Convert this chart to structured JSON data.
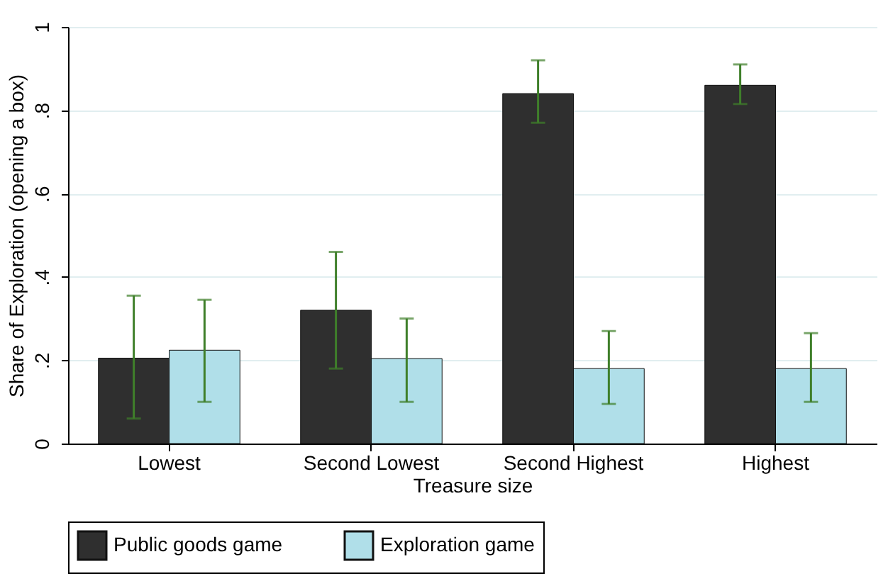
{
  "chart_data": {
    "type": "bar",
    "xlabel": "Treasure size",
    "ylabel": "Share of Exploration (opening a box)",
    "categories": [
      "Lowest",
      "Second Lowest",
      "Second Highest",
      "Highest"
    ],
    "series": [
      {
        "name": "Public goods game",
        "color": "#2f2f2f",
        "values": [
          0.205,
          0.32,
          0.84,
          0.86
        ],
        "errors": [
          [
            0.06,
            0.355
          ],
          [
            0.18,
            0.46
          ],
          [
            0.77,
            0.92
          ],
          [
            0.815,
            0.91
          ]
        ]
      },
      {
        "name": "Exploration game",
        "color": "#b0dfe9",
        "values": [
          0.224,
          0.204,
          0.18,
          0.18
        ],
        "errors": [
          [
            0.1,
            0.345
          ],
          [
            0.1,
            0.3
          ],
          [
            0.095,
            0.27
          ],
          [
            0.1,
            0.265
          ]
        ]
      }
    ],
    "ylim": [
      0,
      1
    ],
    "yticks": [
      0,
      {
        "value": 0.2,
        "label": ".2"
      },
      {
        "value": 0.4,
        "label": ".4"
      },
      {
        "value": 0.6,
        "label": ".6"
      },
      {
        "value": 0.8,
        "label": ".8"
      },
      1
    ],
    "grid": "y",
    "legend": "bottom"
  }
}
